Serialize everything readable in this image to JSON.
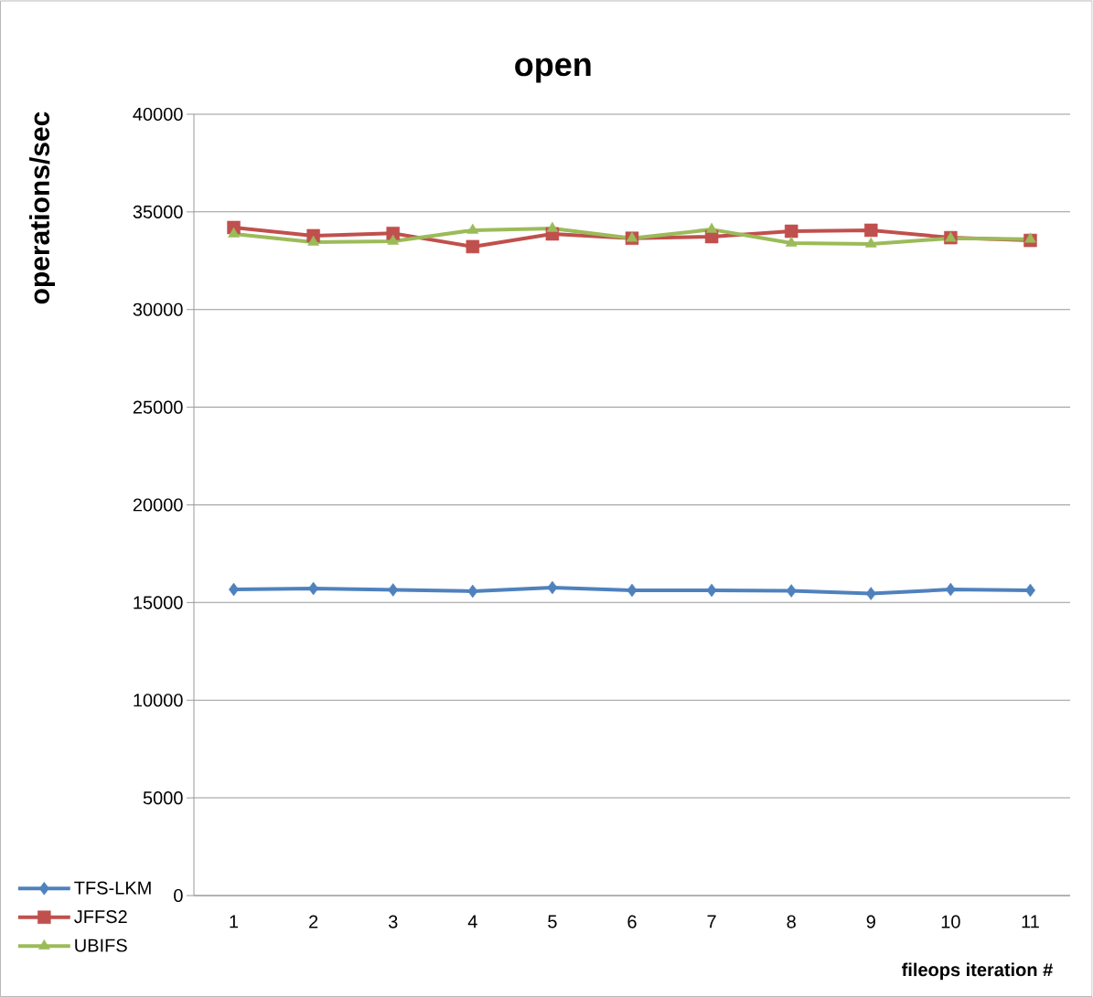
{
  "chart_data": {
    "type": "line",
    "title": "open",
    "xlabel": "fileops iteration #",
    "ylabel": "operations/sec",
    "categories": [
      "1",
      "2",
      "3",
      "4",
      "5",
      "6",
      "7",
      "8",
      "9",
      "10",
      "11"
    ],
    "series": [
      {
        "name": "TFS-LKM",
        "color": "#4f81bd",
        "marker": "diamond",
        "values": [
          15670,
          15720,
          15650,
          15580,
          15770,
          15630,
          15630,
          15600,
          15460,
          15670,
          15630
        ]
      },
      {
        "name": "JFFS2",
        "color": "#c0504d",
        "marker": "square",
        "values": [
          34200,
          33780,
          33900,
          33220,
          33870,
          33650,
          33730,
          34010,
          34060,
          33680,
          33540
        ]
      },
      {
        "name": "UBIFS",
        "color": "#9bbb59",
        "marker": "triangle",
        "values": [
          33870,
          33450,
          33500,
          34060,
          34150,
          33650,
          34100,
          33400,
          33360,
          33650,
          33600
        ]
      }
    ],
    "ylim": [
      0,
      40000
    ],
    "yticks": [
      0,
      5000,
      10000,
      15000,
      20000,
      25000,
      30000,
      35000,
      40000
    ],
    "grid": "y",
    "legend": "bottom left"
  }
}
